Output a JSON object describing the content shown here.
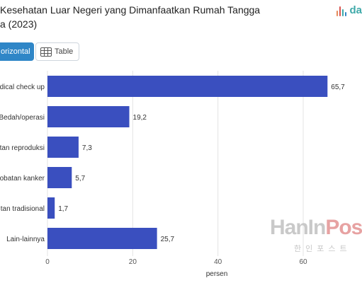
{
  "title_lines": [
    "Kesehatan Luar Negeri yang Dimanfaatkan Rumah Tangga",
    "a (2023)"
  ],
  "logo": {
    "text": "da",
    "icon": "dataindonesia-bars-icon"
  },
  "tabs": {
    "horizontal_label": "orizontal",
    "table_label": "Table",
    "table_icon": "table-grid-icon"
  },
  "watermark": {
    "main_a": "HanIn",
    "main_b": "Pos",
    "sub": "한인포스트"
  },
  "colors": {
    "bar": "#3a4fbf",
    "grid": "#e3e3e3",
    "tab_active": "#2f86c7",
    "logo": "#3ea9a9"
  },
  "chart_data": {
    "type": "bar",
    "orientation": "horizontal",
    "categories": [
      "dical check up",
      "Bedah/operasi",
      "tan reproduksi",
      "obatan kanker",
      "tan tradisional",
      "Lain-lainnya"
    ],
    "values": [
      65.7,
      19.2,
      7.3,
      5.7,
      1.7,
      25.7
    ],
    "value_labels": [
      "65,7",
      "19,2",
      "7,3",
      "5,7",
      "1,7",
      "25,7"
    ],
    "xlabel": "persen",
    "xlim": [
      0,
      70
    ],
    "ticks": [
      0,
      20,
      40,
      60
    ],
    "grid": true
  }
}
